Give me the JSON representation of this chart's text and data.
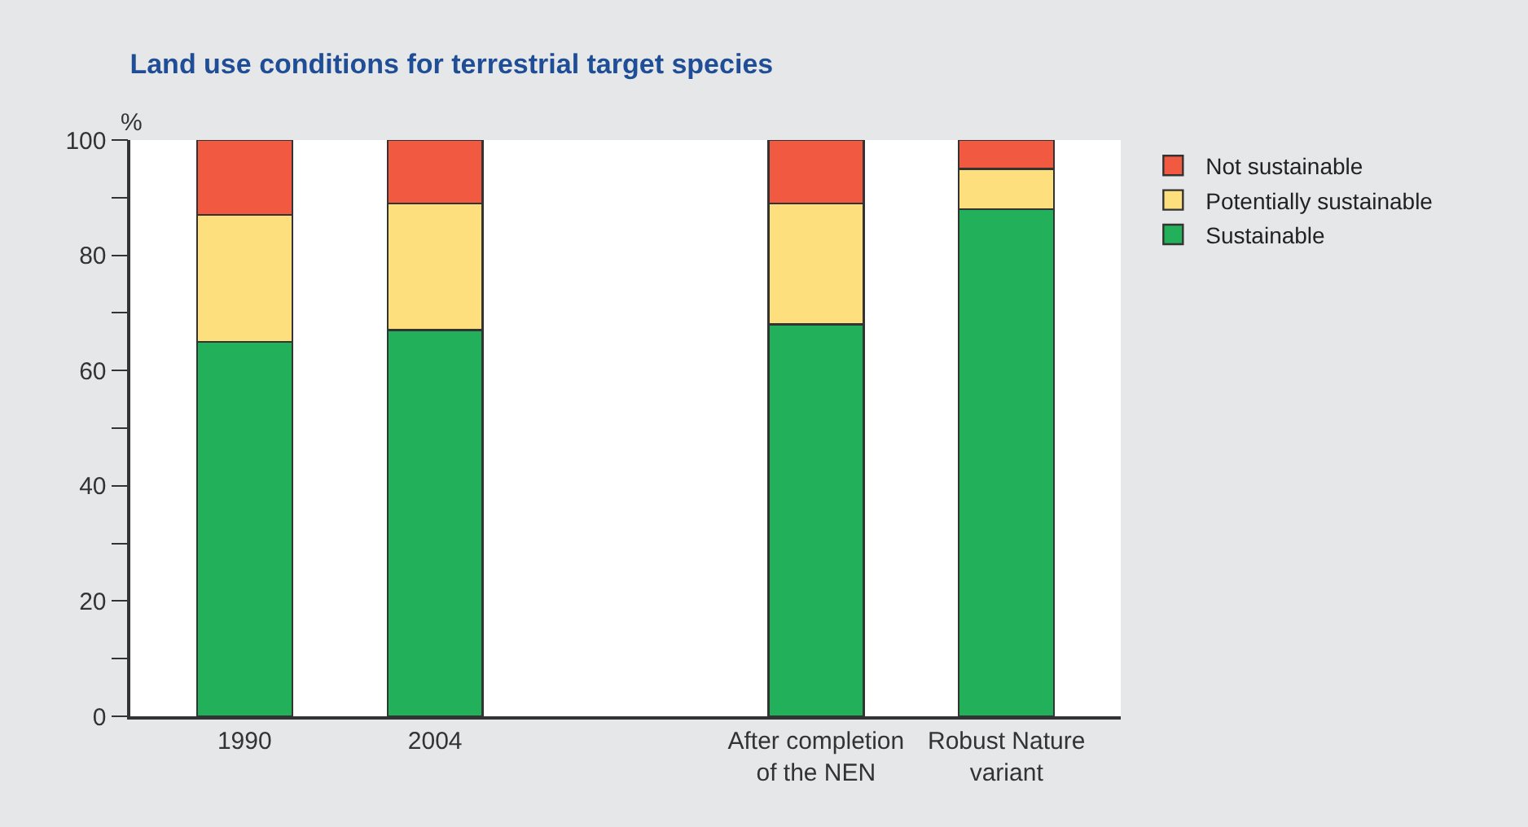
{
  "chart_data": {
    "type": "bar",
    "stacked": true,
    "title": "Land use conditions for terrestrial target species",
    "ylabel": "%",
    "categories": [
      "1990",
      "2004",
      null,
      "After completion\nof the NEN",
      "Robust Nature\nvariant"
    ],
    "series": [
      {
        "name": "Sustainable",
        "color": "#22b05a",
        "values": [
          65,
          67,
          null,
          68,
          88
        ]
      },
      {
        "name": "Potentially sustainable",
        "color": "#fddf7e",
        "values": [
          22,
          22,
          null,
          21,
          7
        ]
      },
      {
        "name": "Not sustainable",
        "color": "#f15a40",
        "values": [
          13,
          11,
          null,
          11,
          5
        ]
      }
    ],
    "ylim": [
      0,
      100
    ],
    "yticks": [
      0,
      {
        "value": 10,
        "label": null
      },
      20,
      {
        "value": 30,
        "label": null
      },
      40,
      {
        "value": 50,
        "label": null
      },
      60,
      {
        "value": 70,
        "label": null
      },
      80,
      {
        "value": 90,
        "label": null
      },
      100
    ],
    "legend": "right"
  }
}
